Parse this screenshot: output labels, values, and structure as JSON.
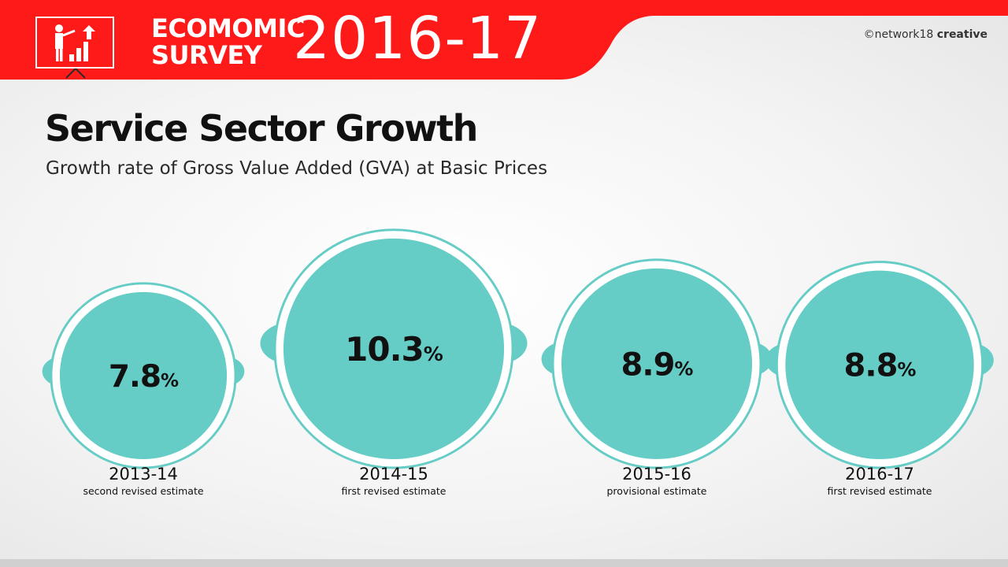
{
  "header": {
    "survey_line1": "ECOMOMIC",
    "survey_line2": "SURVEY",
    "year": "2016-17",
    "credit_prefix": "©network18 ",
    "credit_bold": "creative",
    "accent_color": "#ff1a1a"
  },
  "title": "Service Sector Growth",
  "subtitle": "Growth rate of Gross Value Added (GVA) at Basic Prices",
  "chart_data": {
    "type": "bubble",
    "title": "Service Sector Growth",
    "subtitle": "Growth rate of Gross Value Added (GVA) at Basic Prices",
    "unit": "%",
    "categories": [
      "2013-14",
      "2014-15",
      "2015-16",
      "2016-17"
    ],
    "values": [
      7.8,
      10.3,
      8.9,
      8.8
    ],
    "value_labels": [
      "7.8",
      "10.3",
      "8.9",
      "8.8"
    ],
    "estimate_types": [
      "second revised estimate",
      "first revised estimate",
      "provisional estimate",
      "first revised estimate"
    ],
    "bubble_color": "#66cdc6",
    "label_color": "#111111"
  }
}
